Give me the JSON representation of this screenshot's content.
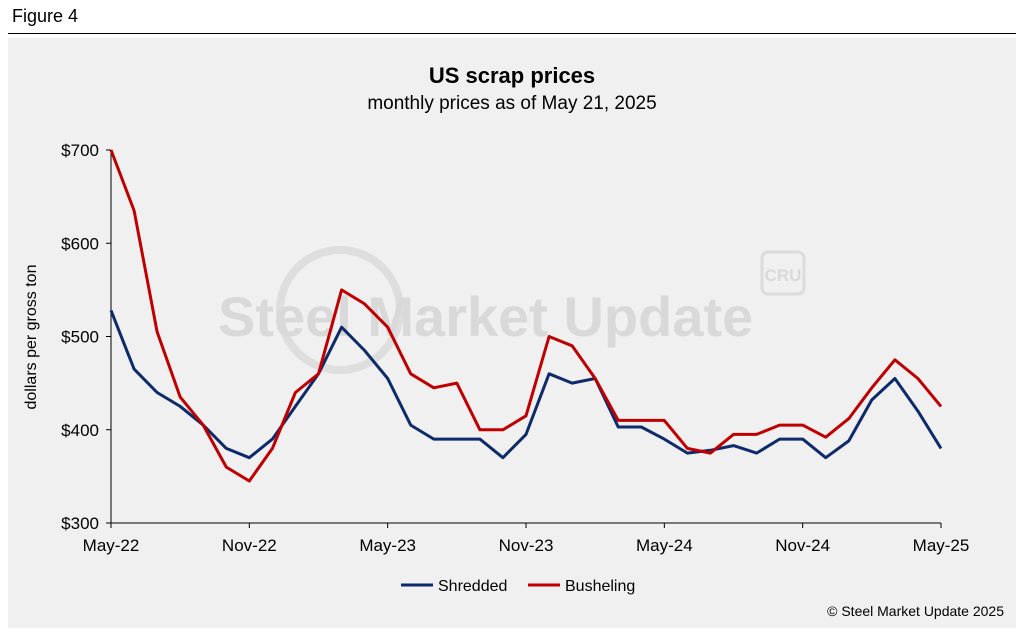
{
  "figure_label": "Figure 4",
  "watermark": {
    "text": "Steel Market Update",
    "logo_text": "CRU"
  },
  "copyright": "© Steel Market Update 2025",
  "colors": {
    "shredded": "#0d2a6b",
    "busheling": "#c00000",
    "background": "#f0f0f0"
  },
  "chart_data": {
    "type": "line",
    "title": "US scrap prices",
    "subtitle": "monthly prices as of May 21, 2025",
    "xlabel": "",
    "ylabel": "dollars per  gross ton",
    "x": [
      "May-22",
      "Jun-22",
      "Jul-22",
      "Aug-22",
      "Sep-22",
      "Oct-22",
      "Nov-22",
      "Dec-22",
      "Jan-23",
      "Feb-23",
      "Mar-23",
      "Apr-23",
      "May-23",
      "Jun-23",
      "Jul-23",
      "Aug-23",
      "Sep-23",
      "Oct-23",
      "Nov-23",
      "Dec-23",
      "Jan-24",
      "Feb-24",
      "Mar-24",
      "Apr-24",
      "May-24",
      "Jun-24",
      "Jul-24",
      "Aug-24",
      "Sep-24",
      "Oct-24",
      "Nov-24",
      "Dec-24",
      "Jan-25",
      "Feb-25",
      "Mar-25",
      "Apr-25",
      "May-25"
    ],
    "x_ticks": [
      "May-22",
      "Nov-22",
      "May-23",
      "Nov-23",
      "May-24",
      "Nov-24",
      "May-25"
    ],
    "ylim": [
      300,
      700
    ],
    "y_ticks": [
      300,
      400,
      500,
      600,
      700
    ],
    "y_tick_labels": [
      "$300",
      "$400",
      "$500",
      "$600",
      "$700"
    ],
    "series": [
      {
        "name": "Shredded",
        "values": [
          528,
          465,
          440,
          425,
          405,
          380,
          370,
          390,
          425,
          460,
          510,
          485,
          455,
          405,
          390,
          390,
          390,
          370,
          395,
          460,
          450,
          455,
          403,
          403,
          390,
          375,
          378,
          383,
          375,
          390,
          390,
          370,
          388,
          432,
          455,
          420,
          380
        ]
      },
      {
        "name": "Busheling",
        "values": [
          700,
          635,
          505,
          435,
          405,
          360,
          345,
          380,
          440,
          460,
          550,
          535,
          510,
          460,
          445,
          450,
          400,
          400,
          415,
          500,
          490,
          455,
          410,
          410,
          410,
          380,
          375,
          395,
          395,
          405,
          405,
          392,
          412,
          445,
          475,
          455,
          425
        ]
      }
    ],
    "legend_position": "bottom-center"
  }
}
